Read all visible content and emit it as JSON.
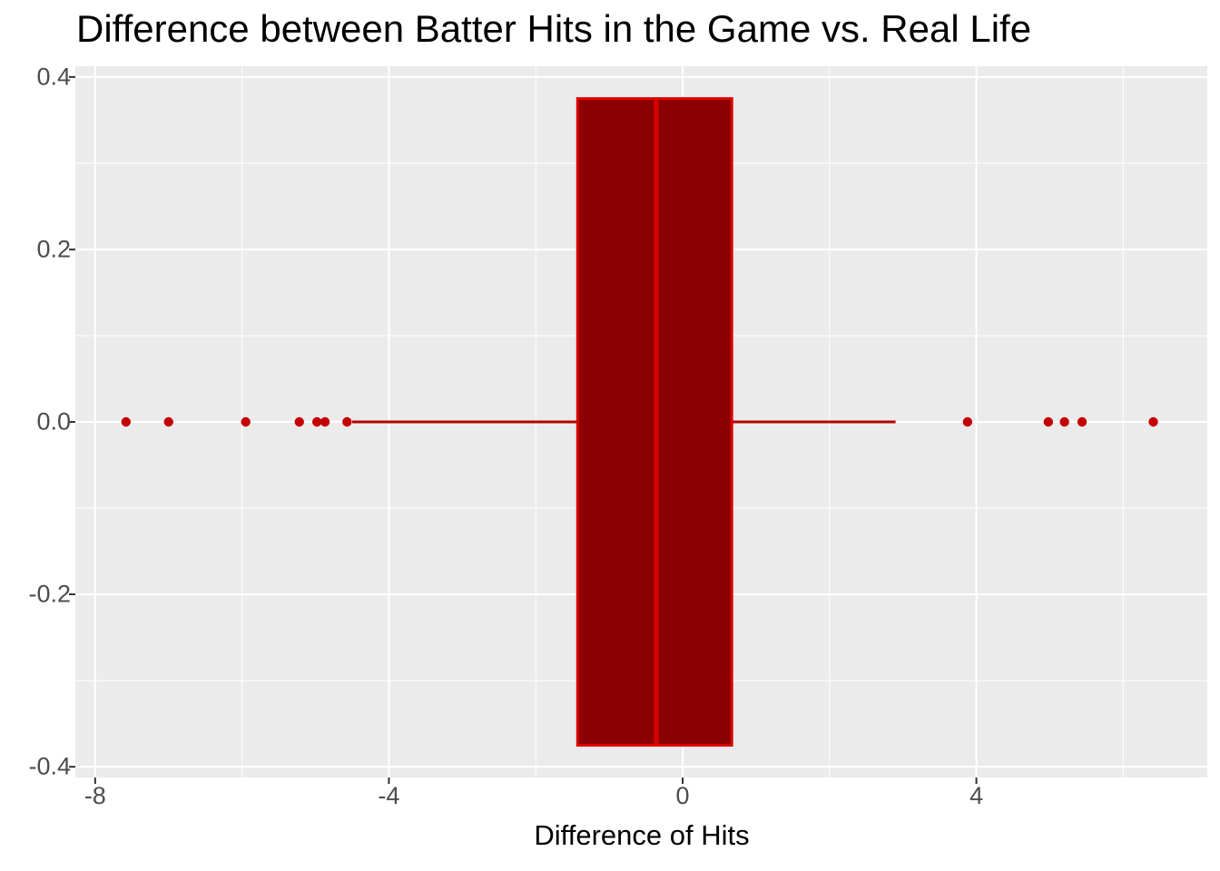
{
  "title": "Difference between Batter Hits in the Game vs. Real Life",
  "chart_data": {
    "type": "boxplot",
    "orientation": "horizontal",
    "title": "Difference between Batter Hits in the Game vs. Real Life",
    "xlabel": "Difference of Hits",
    "ylabel": "",
    "xlim": [
      -8.27,
      7.145
    ],
    "ylim": [
      -0.4125,
      0.4125
    ],
    "x_ticks": [
      -8,
      -4,
      0,
      4
    ],
    "x_tick_labels": [
      "-8",
      "-4",
      "0",
      "4"
    ],
    "x_minor_ticks": [
      -6,
      -2,
      2,
      6
    ],
    "y_ticks": [
      0.4,
      0.2,
      0.0,
      -0.2,
      -0.4
    ],
    "y_tick_labels": [
      "0.4",
      "0.2",
      "0.0",
      "-0.2",
      "-0.4"
    ],
    "y_minor_ticks": [
      0.3,
      0.1,
      -0.1,
      -0.3
    ],
    "grid": true,
    "legend": false,
    "box": {
      "q1": -1.43,
      "median": -0.36,
      "q3": 0.67,
      "whisker_low": -4.5,
      "whisker_high": 2.9,
      "center_y": 0,
      "half_width": 0.375
    },
    "outliers": [
      -7.58,
      -7.0,
      -5.95,
      -5.22,
      -4.98,
      -4.87,
      -4.57,
      3.88,
      4.98,
      5.2,
      5.44,
      6.41
    ],
    "colors": {
      "box_fill": "#8B0000",
      "box_stroke": "#DB0000",
      "median_line": "#DB0000",
      "whisker": "#B40000",
      "outlier_point": "#C40000",
      "panel_bg": "#EBEBEB",
      "grid_line": "#FFFFFF",
      "tick_mark": "#333333",
      "tick_label": "#4D4D4D",
      "axis_title": "#000000",
      "title": "#000000"
    }
  }
}
